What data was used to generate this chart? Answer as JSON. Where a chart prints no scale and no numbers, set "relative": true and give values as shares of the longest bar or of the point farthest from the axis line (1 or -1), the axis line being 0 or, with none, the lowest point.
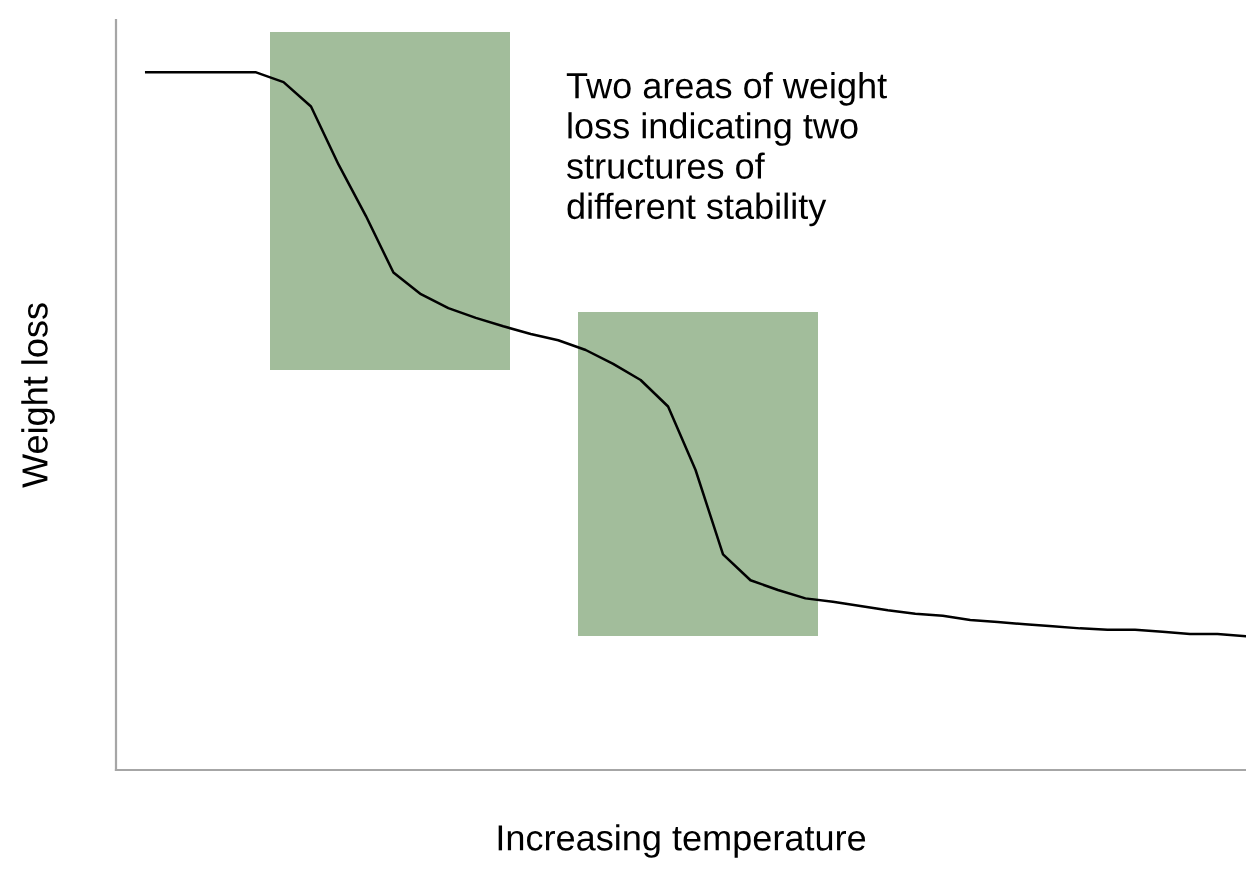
{
  "chart_data": {
    "type": "line",
    "relative": true,
    "xlabel": "Increasing temperature",
    "ylabel": "Weight loss",
    "categories": [
      null,
      null,
      null,
      null,
      null,
      null,
      null,
      null,
      null,
      null,
      null,
      null,
      null,
      null,
      null,
      null,
      null,
      null,
      null,
      null,
      null,
      null,
      null,
      null,
      null,
      null,
      null,
      null,
      null,
      null,
      null,
      null,
      null,
      null,
      null,
      null,
      null,
      null,
      null,
      null,
      null
    ],
    "series": [
      {
        "color": "#000000",
        "values": [
          1.0,
          1.0,
          1.0,
          1.0,
          1.0,
          0.986,
          0.951,
          0.868,
          0.794,
          0.713,
          0.682,
          0.662,
          0.648,
          0.636,
          0.625,
          0.616,
          0.602,
          0.582,
          0.559,
          0.521,
          0.43,
          0.309,
          0.272,
          0.258,
          0.246,
          0.241,
          0.235,
          0.229,
          0.224,
          0.221,
          0.215,
          0.212,
          0.209,
          0.206,
          0.203,
          0.201,
          0.201,
          0.198,
          0.195,
          0.195,
          0.192
        ]
      }
    ],
    "annotations": [
      "Two areas of weight\nloss indicating two\nstructures of\ndifferent stability"
    ],
    "grid": false,
    "marker": "none",
    "line_style": "solid"
  }
}
